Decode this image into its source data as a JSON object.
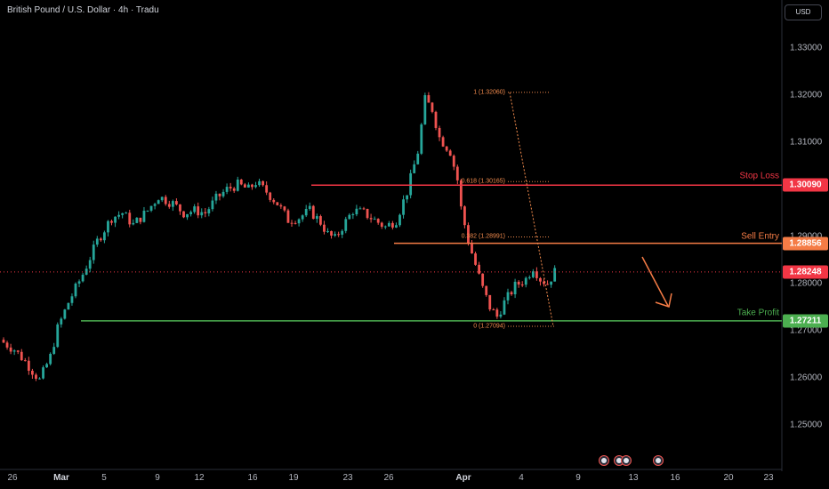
{
  "header": {
    "title": "British Pound / U.S. Dollar · 4h · Tradu",
    "currency_button": "USD"
  },
  "colors": {
    "up": "#26a69a",
    "down": "#ef5350",
    "stop_loss": "#f23645",
    "sell_entry": "#f57c46",
    "take_profit": "#4caf50",
    "current_price": "#f23645",
    "fib": "#f28b4d",
    "arrow": "#f57c46"
  },
  "price_axis": {
    "ticks": [
      "1.33000",
      "1.32000",
      "1.31000",
      "1.29000",
      "1.28000",
      "1.27000",
      "1.26000",
      "1.25000"
    ]
  },
  "time_axis": {
    "ticks": [
      {
        "label": "26",
        "bold": false
      },
      {
        "label": "Mar",
        "bold": true
      },
      {
        "label": "5",
        "bold": false
      },
      {
        "label": "9",
        "bold": false
      },
      {
        "label": "12",
        "bold": false
      },
      {
        "label": "16",
        "bold": false
      },
      {
        "label": "19",
        "bold": false
      },
      {
        "label": "23",
        "bold": false
      },
      {
        "label": "26",
        "bold": false
      },
      {
        "label": "Apr",
        "bold": true
      },
      {
        "label": "4",
        "bold": false
      },
      {
        "label": "9",
        "bold": false
      },
      {
        "label": "13",
        "bold": false
      },
      {
        "label": "16",
        "bold": false
      },
      {
        "label": "20",
        "bold": false
      },
      {
        "label": "23",
        "bold": false
      }
    ]
  },
  "levels": {
    "stop_loss": {
      "label": "Stop Loss",
      "price": "1.30090"
    },
    "sell_entry": {
      "label": "Sell Entry",
      "price": "1.28856"
    },
    "take_profit": {
      "label": "Take Profit",
      "price": "1.27211"
    },
    "current": {
      "price": "1.28248"
    }
  },
  "fibonacci": [
    {
      "label": "1 (1.32060)"
    },
    {
      "label": "0.618 (1.30165)"
    },
    {
      "label": "0.382 (1.28991)"
    },
    {
      "label": "0 (1.27094)"
    }
  ],
  "events": [
    "us-flag-icon",
    "uk-flag-icon",
    "uk-flag-icon",
    "uk-flag-icon"
  ],
  "chart_data": {
    "type": "candlestick",
    "title": "British Pound / U.S. Dollar · 4h · Tradu",
    "ylim": [
      1.2455,
      1.3345
    ],
    "close_path": [
      [
        0,
        1.2675
      ],
      [
        3,
        1.266
      ],
      [
        6,
        1.2635
      ],
      [
        10,
        1.2595
      ],
      [
        13,
        1.2645
      ],
      [
        15,
        1.2705
      ],
      [
        18,
        1.276
      ],
      [
        22,
        1.282
      ],
      [
        26,
        1.289
      ],
      [
        30,
        1.294
      ],
      [
        33,
        1.295
      ],
      [
        36,
        1.2925
      ],
      [
        40,
        1.2955
      ],
      [
        43,
        1.2985
      ],
      [
        47,
        1.297
      ],
      [
        50,
        1.295
      ],
      [
        53,
        1.2955
      ],
      [
        56,
        1.295
      ],
      [
        59,
        1.298
      ],
      [
        62,
        1.3
      ],
      [
        65,
        1.301
      ],
      [
        68,
        1.3
      ],
      [
        70,
        1.3015
      ],
      [
        73,
        1.2995
      ],
      [
        76,
        1.297
      ],
      [
        79,
        1.2935
      ],
      [
        82,
        1.294
      ],
      [
        85,
        1.2955
      ],
      [
        88,
        1.293
      ],
      [
        90,
        1.2905
      ],
      [
        92,
        1.2895
      ],
      [
        94,
        1.292
      ],
      [
        97,
        1.2955
      ],
      [
        100,
        1.295
      ],
      [
        103,
        1.2935
      ],
      [
        106,
        1.292
      ],
      [
        109,
        1.2935
      ],
      [
        112,
        1.2995
      ],
      [
        115,
        1.308
      ],
      [
        117,
        1.319
      ],
      [
        119,
        1.317
      ],
      [
        121,
        1.311
      ],
      [
        124,
        1.308
      ],
      [
        126,
        1.302
      ],
      [
        127,
        1.296
      ],
      [
        129,
        1.289
      ],
      [
        131,
        1.284
      ],
      [
        133,
        1.279
      ],
      [
        135,
        1.275
      ],
      [
        137,
        1.273
      ],
      [
        139,
        1.276
      ],
      [
        142,
        1.2795
      ],
      [
        145,
        1.281
      ],
      [
        147,
        1.2835
      ],
      [
        149,
        1.281
      ],
      [
        151,
        1.28
      ],
      [
        153,
        1.2825
      ]
    ],
    "series": [
      {
        "name": "GBP/USD",
        "last": 1.28248
      }
    ]
  }
}
